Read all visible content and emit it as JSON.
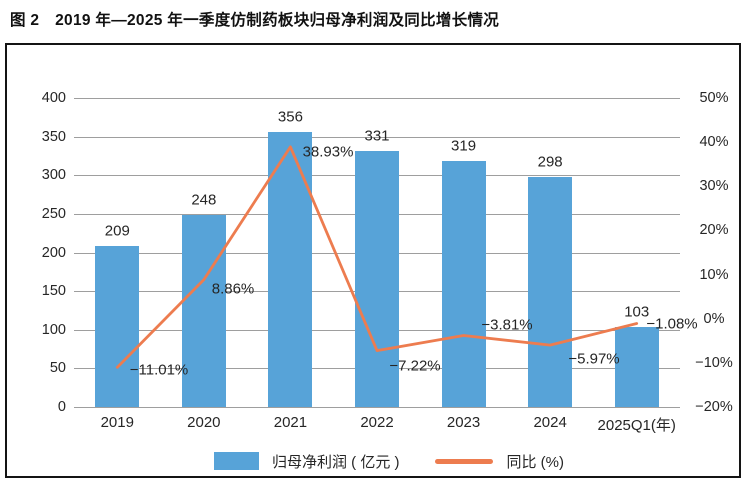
{
  "header": {
    "title": "图 2　2019 年—2025 年一季度仿制药板块归母净利润及同比增长情况"
  },
  "colors": {
    "bar": "#57A3D8",
    "line": "#ED7C4F",
    "gridline": "#9e9e9e",
    "text": "#262626",
    "frame_border": "#141414"
  },
  "chart_data": {
    "type": "bar",
    "subtype": "combo-bar-line-dual-axis",
    "title": "2019 年—2025 年一季度仿制药板块归母净利润及同比增长情况",
    "categories": [
      "2019",
      "2020",
      "2021",
      "2022",
      "2023",
      "2024",
      "2025Q1(年)"
    ],
    "series": [
      {
        "name": "归母净利润 ( 亿元 )",
        "type": "bar",
        "axis": "left",
        "color": "#57A3D8",
        "values": [
          209,
          248,
          356,
          331,
          319,
          298,
          103
        ],
        "labels": [
          "209",
          "248",
          "356",
          "331",
          "319",
          "298",
          "103"
        ]
      },
      {
        "name": "同比 (%)",
        "type": "line",
        "axis": "right",
        "color": "#ED7C4F",
        "values": [
          -11.01,
          8.86,
          38.93,
          -7.22,
          -3.81,
          -5.97,
          -1.08
        ],
        "labels": [
          "−11.01%",
          "8.86%",
          "38.93%",
          "−7.22%",
          "−3.81%",
          "−5.97%",
          "−1.08%"
        ]
      }
    ],
    "left_axis": {
      "min": 0,
      "max": 400,
      "step": 50,
      "ticks": [
        "400",
        "350",
        "300",
        "250",
        "200",
        "150",
        "100",
        "50",
        "0"
      ]
    },
    "right_axis": {
      "min": -20,
      "max": 50,
      "step": 10,
      "ticks": [
        "50%",
        "40%",
        "30%",
        "20%",
        "10%",
        "0%",
        "−10%",
        "−20%"
      ]
    },
    "grid": true,
    "legend_position": "bottom-center",
    "xlabel": "",
    "ylabel": ""
  }
}
